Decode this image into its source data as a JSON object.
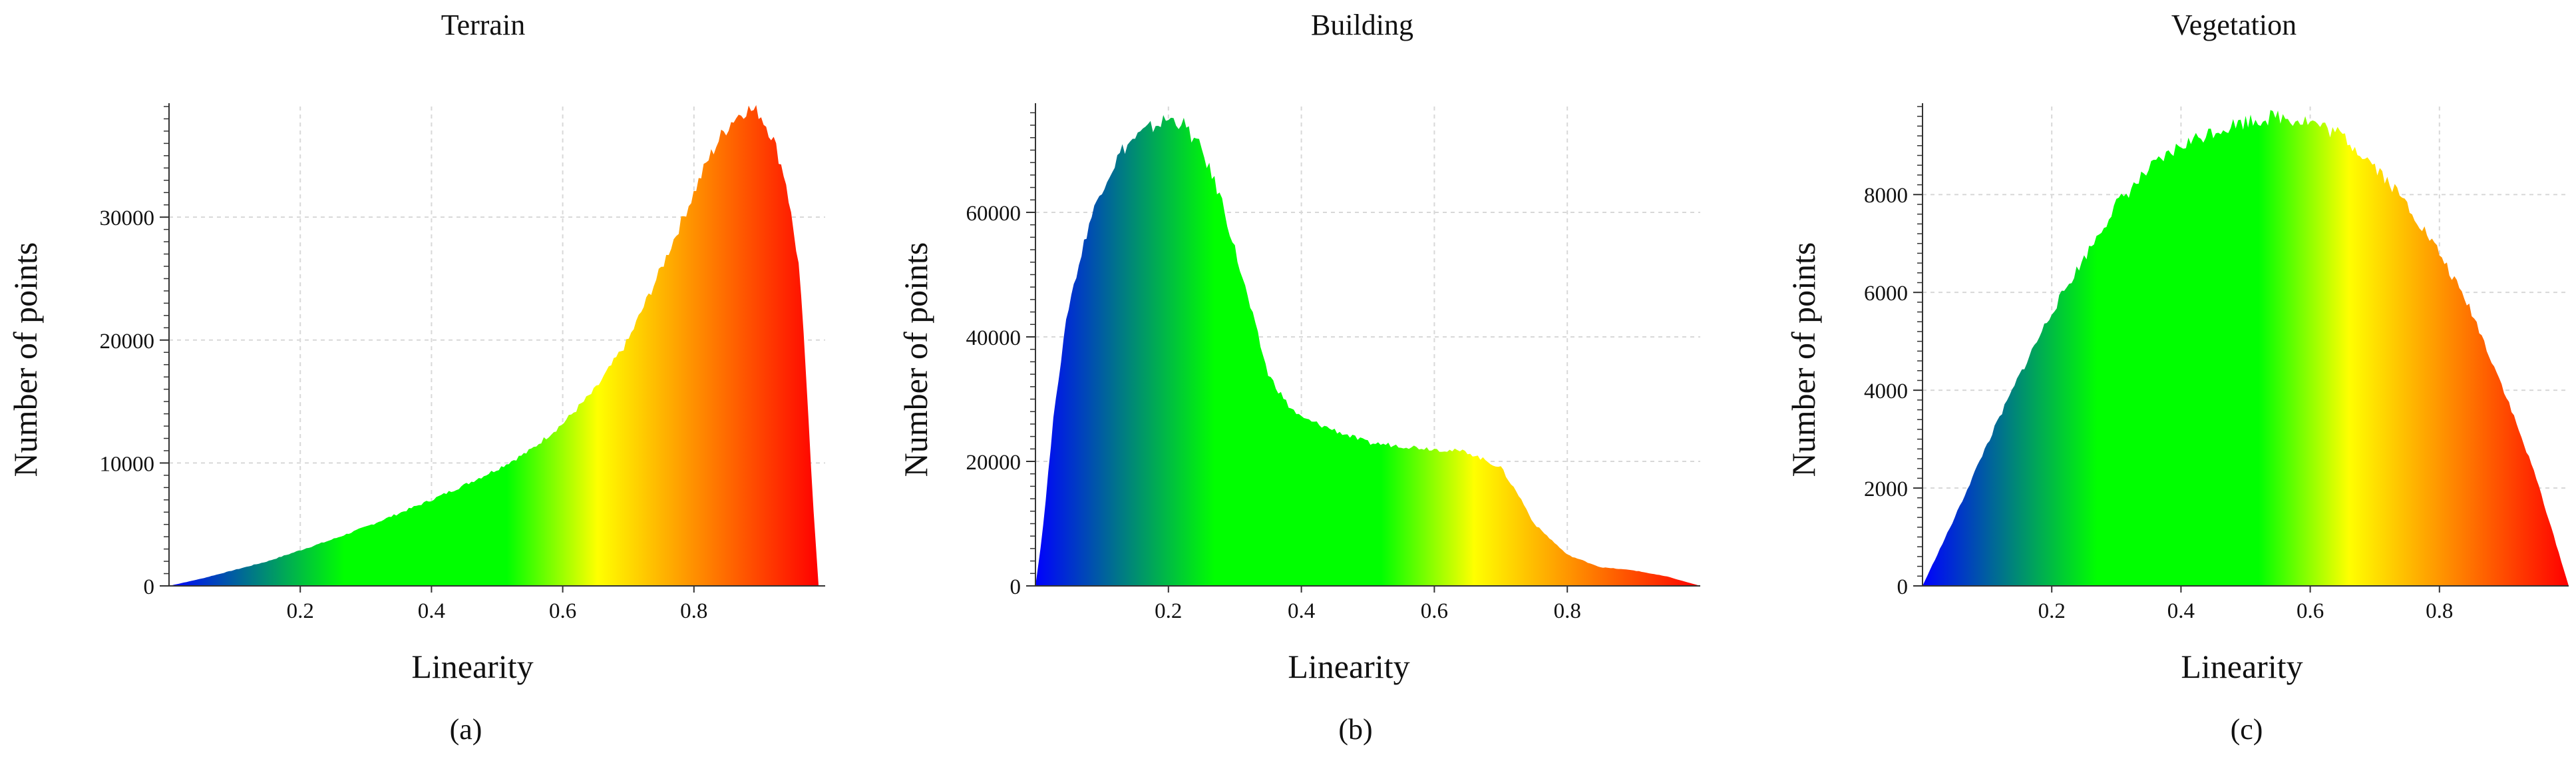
{
  "chart_data": [
    {
      "type": "area",
      "panel_label": "(a)",
      "title": "Terrain",
      "xlabel": "Linearity",
      "ylabel": "Number of points",
      "xlim": [
        0,
        1
      ],
      "ylim": [
        0,
        39000
      ],
      "xticks": [
        0.2,
        0.4,
        0.6,
        0.8
      ],
      "yticks": [
        0,
        10000,
        20000,
        30000
      ],
      "ytick_labels": [
        "0",
        "10000",
        "20000",
        "30000"
      ],
      "grid": true,
      "color_gradient": [
        "#0000ff",
        "#00ff00",
        "#ffff00",
        "#ff0000"
      ],
      "x": [
        0.0,
        0.05,
        0.1,
        0.15,
        0.2,
        0.25,
        0.3,
        0.35,
        0.4,
        0.45,
        0.5,
        0.55,
        0.6,
        0.65,
        0.7,
        0.75,
        0.8,
        0.82,
        0.84,
        0.86,
        0.88,
        0.9,
        0.92,
        0.94,
        0.96,
        0.97,
        0.98,
        0.99
      ],
      "y": [
        0,
        600,
        1300,
        2000,
        2900,
        3800,
        4800,
        5900,
        7000,
        8200,
        9500,
        11000,
        13200,
        16000,
        20000,
        25800,
        32000,
        34500,
        36500,
        38000,
        38800,
        38500,
        36500,
        33000,
        26000,
        18000,
        8000,
        0
      ]
    },
    {
      "type": "area",
      "panel_label": "(b)",
      "title": "Building",
      "xlabel": "Linearity",
      "ylabel": "Number of points",
      "xlim": [
        0,
        1
      ],
      "ylim": [
        0,
        77000
      ],
      "xticks": [
        0.2,
        0.4,
        0.6,
        0.8
      ],
      "yticks": [
        0,
        20000,
        40000,
        60000
      ],
      "ytick_labels": [
        "0",
        "20000",
        "40000",
        "60000"
      ],
      "grid": true,
      "color_gradient": [
        "#0000ff",
        "#00ff00",
        "#ffff00",
        "#ff0000"
      ],
      "x": [
        0.0,
        0.01,
        0.03,
        0.05,
        0.08,
        0.1,
        0.13,
        0.15,
        0.18,
        0.2,
        0.22,
        0.25,
        0.28,
        0.3,
        0.33,
        0.35,
        0.38,
        0.4,
        0.45,
        0.5,
        0.55,
        0.6,
        0.65,
        0.7,
        0.73,
        0.75,
        0.8,
        0.85,
        0.9,
        0.95,
        1.0
      ],
      "y": [
        0,
        8000,
        30000,
        45000,
        58000,
        64000,
        70000,
        72000,
        74000,
        75000,
        74500,
        70000,
        62000,
        54000,
        42000,
        34000,
        29000,
        27000,
        25000,
        23000,
        22500,
        22000,
        21500,
        19000,
        14000,
        10000,
        5000,
        3000,
        2500,
        1500,
        0
      ]
    },
    {
      "type": "area",
      "panel_label": "(c)",
      "title": "Vegetation",
      "xlabel": "Linearity",
      "ylabel": "Number of points",
      "xlim": [
        0,
        1
      ],
      "ylim": [
        0,
        9800
      ],
      "xticks": [
        0.2,
        0.4,
        0.6,
        0.8
      ],
      "yticks": [
        0,
        2000,
        4000,
        6000,
        8000
      ],
      "ytick_labels": [
        "0",
        "2000",
        "4000",
        "6000",
        "8000"
      ],
      "grid": true,
      "color_gradient": [
        "#0000ff",
        "#00ff00",
        "#ffff00",
        "#ff0000"
      ],
      "x": [
        0.0,
        0.05,
        0.1,
        0.15,
        0.2,
        0.25,
        0.3,
        0.35,
        0.4,
        0.45,
        0.5,
        0.55,
        0.6,
        0.65,
        0.7,
        0.75,
        0.8,
        0.85,
        0.9,
        0.95,
        1.0
      ],
      "y": [
        0,
        1400,
        2900,
        4300,
        5600,
        6700,
        7800,
        8500,
        9000,
        9300,
        9500,
        9600,
        9500,
        9200,
        8600,
        7800,
        6800,
        5600,
        4000,
        2200,
        0
      ]
    }
  ]
}
